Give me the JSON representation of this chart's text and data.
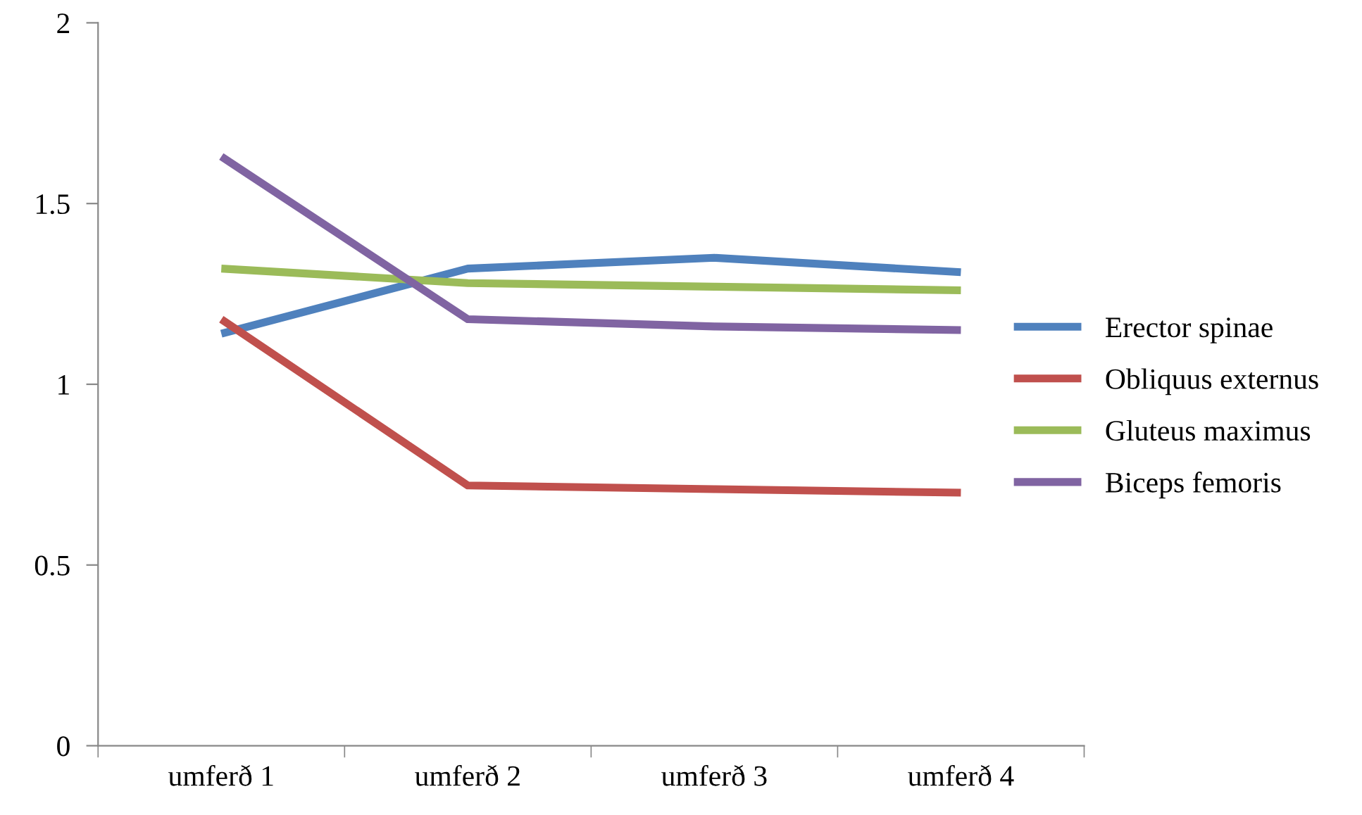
{
  "chart_data": {
    "type": "line",
    "categories": [
      "umferð 1",
      "umferð 2",
      "umferð 3",
      "umferð 4"
    ],
    "series": [
      {
        "name": "Erector spinae",
        "color": "#4f81bd",
        "values": [
          1.14,
          1.32,
          1.35,
          1.31
        ]
      },
      {
        "name": "Obliquus externus",
        "color": "#c0504d",
        "values": [
          1.18,
          0.72,
          0.71,
          0.7
        ]
      },
      {
        "name": "Gluteus maximus",
        "color": "#9bbb59",
        "values": [
          1.32,
          1.28,
          1.27,
          1.26
        ]
      },
      {
        "name": "Biceps femoris",
        "color": "#8064a2",
        "values": [
          1.63,
          1.18,
          1.16,
          1.15
        ]
      }
    ],
    "ylim": [
      0,
      2
    ],
    "yticks": [
      0,
      0.5,
      1,
      1.5,
      2
    ],
    "grid": false,
    "legend": "right",
    "marker": "none",
    "line_style": "solid"
  }
}
